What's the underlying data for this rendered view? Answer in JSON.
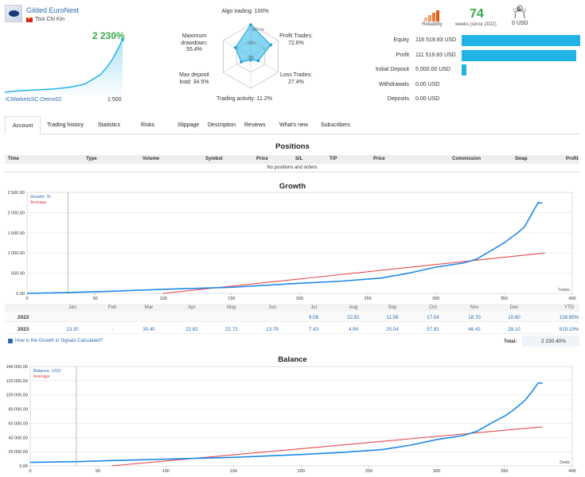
{
  "signal": {
    "name": "Gilded EuroNest",
    "author": "Tsoi Chi Kin",
    "growth": "2 230%",
    "broker": "ICMarketsSC-Demo02",
    "leverage": "1:500"
  },
  "radar": {
    "algo": "Algo trading: 100%",
    "algo_inner": "100+%",
    "profit": "Profit Trades:\n72.6%",
    "loss": "Loss Trades:\n27.4%",
    "activity": "Trading activity: 11.2%",
    "deposit": "Max deposit\nload: 34.5%",
    "drawdown": "Maximum\ndrawdown:\n55.4%",
    "ring_mid": "50%",
    "ring_inner": "0%",
    "values": [
      1.0,
      0.726,
      0.274,
      0.112,
      0.345,
      0.554
    ]
  },
  "summary": {
    "reliability_label": "Reliability",
    "weeks": "74",
    "weeks_label": "weeks (since 2022)",
    "subscribers": "0",
    "subscribers_unit": "0 USD"
  },
  "stats": [
    {
      "label": "Equity",
      "value": "116 519.83 USD",
      "fraction": 1.0
    },
    {
      "label": "Profit",
      "value": "111 519.83 USD",
      "fraction": 0.967
    },
    {
      "label": "Initial Deposit",
      "value": "5 000.00 USD",
      "fraction": 0.043
    },
    {
      "label": "Withdrawals",
      "value": "0.00 USD",
      "fraction": 0
    },
    {
      "label": "Deposits",
      "value": "0.00 USD",
      "fraction": 0
    }
  ],
  "tabs": [
    "Account",
    "Trading history",
    "Statistics",
    "Risks",
    "Slippage",
    "Description",
    "Reviews",
    "What's new",
    "Subscribers"
  ],
  "positions": {
    "title": "Positions",
    "columns": [
      "Time",
      "Type",
      "Volume",
      "Symbol",
      "Price",
      "S/L",
      "T/P",
      "Price",
      "Commission",
      "Swap",
      "Profit"
    ],
    "empty": "No positions and orders"
  },
  "growth": {
    "title": "Growth",
    "legend_series": "Growth, %",
    "legend_avg": "Average",
    "x_axis_unit": "Trades",
    "yticks": [
      "2 500.00",
      "2 000.00",
      "1 500.00",
      "1 000.00",
      "500.00",
      "0.00"
    ],
    "xticks": [
      "0",
      "50",
      "100",
      "150",
      "200",
      "250",
      "300",
      "350",
      "400"
    ],
    "months": [
      "Jan",
      "Feb",
      "Mar",
      "Apr",
      "May",
      "Jun",
      "Jul",
      "Aug",
      "Sep",
      "Oct",
      "Nov",
      "Dec",
      "YTD"
    ],
    "years": [
      {
        "year": "2022",
        "values": [
          "",
          "",
          "",
          "",
          "",
          "",
          "9.08",
          "22.81",
          "11.08",
          "17.04",
          "18.70",
          "10.60",
          "128.65%"
        ]
      },
      {
        "year": "2023",
        "values": [
          "13.30",
          "-",
          "30.40",
          "22.82",
          "22.72",
          "13.79",
          "7.43",
          "4.94",
          "20.54",
          "57.81",
          "46.42",
          "28.10",
          "919.19%"
        ]
      }
    ],
    "note": "How is the Growth in Signals Calculated?",
    "total_label": "Total:",
    "total_value": "2 230.40%"
  },
  "balance": {
    "title": "Balance",
    "legend_series": "Balance, USD",
    "legend_avg": "Average",
    "x_axis_unit": "Deals",
    "yticks": [
      "140 000.00",
      "120 000.00",
      "100 000.00",
      "80 000.00",
      "60 000.00",
      "40 000.00",
      "20 000.00",
      "0.00"
    ],
    "xticks": [
      "0",
      "50",
      "100",
      "150",
      "200",
      "250",
      "300",
      "350",
      "400"
    ]
  },
  "chart_data": [
    {
      "type": "line",
      "title": "Growth",
      "ylim": [
        0,
        2500
      ],
      "xlim": [
        0,
        400
      ],
      "series": [
        {
          "name": "Growth, %",
          "x": [
            0,
            30,
            60,
            100,
            150,
            200,
            230,
            260,
            280,
            300,
            320,
            330,
            340,
            350,
            356,
            360,
            365,
            370,
            375,
            378
          ],
          "values": [
            0,
            20,
            50,
            100,
            150,
            250,
            300,
            380,
            500,
            650,
            750,
            850,
            1050,
            1250,
            1400,
            1500,
            1650,
            1950,
            2250,
            2230
          ]
        },
        {
          "name": "Average",
          "x": [
            100,
            380
          ],
          "values": [
            0,
            1000
          ]
        }
      ]
    },
    {
      "type": "line",
      "title": "Balance",
      "ylim": [
        0,
        140000
      ],
      "xlim": [
        0,
        400
      ],
      "series": [
        {
          "name": "Balance, USD",
          "x": [
            0,
            34,
            60,
            100,
            150,
            200,
            230,
            260,
            280,
            300,
            320,
            330,
            340,
            350,
            356,
            360,
            365,
            370,
            375,
            378
          ],
          "values": [
            5000,
            6000,
            7500,
            9500,
            12000,
            16000,
            19000,
            23000,
            29000,
            37000,
            43000,
            49000,
            60000,
            70000,
            78000,
            84000,
            92000,
            104000,
            117000,
            116500
          ]
        },
        {
          "name": "Average",
          "x": [
            60,
            378
          ],
          "values": [
            0,
            55000
          ]
        }
      ]
    }
  ]
}
